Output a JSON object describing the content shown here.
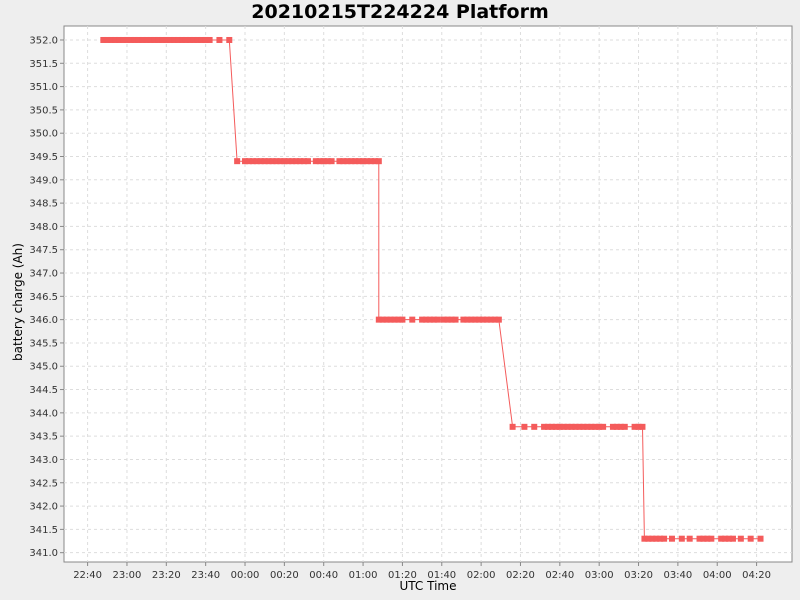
{
  "chart_data": {
    "type": "line",
    "title": "20210215T224224 Platform",
    "xlabel": "UTC Time",
    "ylabel": "battery charge (Ah)",
    "x_tick_labels": [
      "22:40",
      "23:00",
      "23:20",
      "23:40",
      "00:00",
      "00:20",
      "00:40",
      "01:00",
      "01:20",
      "01:40",
      "02:00",
      "02:20",
      "02:40",
      "03:00",
      "03:20",
      "03:40",
      "04:00",
      "04:20"
    ],
    "y_tick_labels": [
      "352.0",
      "351.5",
      "351.0",
      "350.5",
      "350.0",
      "349.5",
      "349.0",
      "348.5",
      "348.0",
      "347.5",
      "347.0",
      "346.5",
      "346.0",
      "345.5",
      "345.0",
      "344.5",
      "344.0",
      "343.5",
      "343.0",
      "342.5",
      "342.0",
      "341.5",
      "341.0"
    ],
    "x_unit": "minutes after 22:40 UTC",
    "xlim": [
      -12,
      358
    ],
    "ylim": [
      340.8,
      352.3
    ],
    "grid": true,
    "series": [
      {
        "color": "#f45b5b",
        "points": [
          [
            8,
            352.0
          ],
          [
            10,
            352.0
          ],
          [
            12,
            352.0
          ],
          [
            14,
            352.0
          ],
          [
            16,
            352.0
          ],
          [
            18,
            352.0
          ],
          [
            20,
            352.0
          ],
          [
            22,
            352.0
          ],
          [
            24,
            352.0
          ],
          [
            26,
            352.0
          ],
          [
            28,
            352.0
          ],
          [
            30,
            352.0
          ],
          [
            32,
            352.0
          ],
          [
            34,
            352.0
          ],
          [
            36,
            352.0
          ],
          [
            38,
            352.0
          ],
          [
            40,
            352.0
          ],
          [
            42,
            352.0
          ],
          [
            44,
            352.0
          ],
          [
            46,
            352.0
          ],
          [
            48,
            352.0
          ],
          [
            50,
            352.0
          ],
          [
            52,
            352.0
          ],
          [
            54,
            352.0
          ],
          [
            56,
            352.0
          ],
          [
            58,
            352.0
          ],
          [
            60,
            352.0
          ],
          [
            62,
            352.0
          ],
          [
            67,
            352.0
          ],
          [
            72,
            352.0
          ],
          [
            76,
            349.4
          ],
          [
            80,
            349.4
          ],
          [
            82,
            349.4
          ],
          [
            84,
            349.4
          ],
          [
            86,
            349.4
          ],
          [
            88,
            349.4
          ],
          [
            90,
            349.4
          ],
          [
            92,
            349.4
          ],
          [
            94,
            349.4
          ],
          [
            96,
            349.4
          ],
          [
            98,
            349.4
          ],
          [
            100,
            349.4
          ],
          [
            102,
            349.4
          ],
          [
            104,
            349.4
          ],
          [
            106,
            349.4
          ],
          [
            108,
            349.4
          ],
          [
            110,
            349.4
          ],
          [
            112,
            349.4
          ],
          [
            116,
            349.4
          ],
          [
            118,
            349.4
          ],
          [
            120,
            349.4
          ],
          [
            122,
            349.4
          ],
          [
            124,
            349.4
          ],
          [
            128,
            349.4
          ],
          [
            130,
            349.4
          ],
          [
            132,
            349.4
          ],
          [
            134,
            349.4
          ],
          [
            136,
            349.4
          ],
          [
            138,
            349.4
          ],
          [
            140,
            349.4
          ],
          [
            142,
            349.4
          ],
          [
            144,
            349.4
          ],
          [
            146,
            349.4
          ],
          [
            148,
            349.4
          ],
          [
            148,
            346.0
          ],
          [
            150,
            346.0
          ],
          [
            152,
            346.0
          ],
          [
            154,
            346.0
          ],
          [
            156,
            346.0
          ],
          [
            158,
            346.0
          ],
          [
            160,
            346.0
          ],
          [
            165,
            346.0
          ],
          [
            170,
            346.0
          ],
          [
            172,
            346.0
          ],
          [
            174,
            346.0
          ],
          [
            176,
            346.0
          ],
          [
            178,
            346.0
          ],
          [
            181,
            346.0
          ],
          [
            183,
            346.0
          ],
          [
            185,
            346.0
          ],
          [
            187,
            346.0
          ],
          [
            191,
            346.0
          ],
          [
            193,
            346.0
          ],
          [
            195,
            346.0
          ],
          [
            197,
            346.0
          ],
          [
            199,
            346.0
          ],
          [
            201,
            346.0
          ],
          [
            203,
            346.0
          ],
          [
            205,
            346.0
          ],
          [
            207,
            346.0
          ],
          [
            209,
            346.0
          ],
          [
            216,
            343.7
          ],
          [
            222,
            343.7
          ],
          [
            227,
            343.7
          ],
          [
            232,
            343.7
          ],
          [
            234,
            343.7
          ],
          [
            236,
            343.7
          ],
          [
            238,
            343.7
          ],
          [
            240,
            343.7
          ],
          [
            242,
            343.7
          ],
          [
            244,
            343.7
          ],
          [
            246,
            343.7
          ],
          [
            248,
            343.7
          ],
          [
            250,
            343.7
          ],
          [
            252,
            343.7
          ],
          [
            254,
            343.7
          ],
          [
            256,
            343.7
          ],
          [
            258,
            343.7
          ],
          [
            260,
            343.7
          ],
          [
            262,
            343.7
          ],
          [
            267,
            343.7
          ],
          [
            269,
            343.7
          ],
          [
            271,
            343.7
          ],
          [
            273,
            343.7
          ],
          [
            278,
            343.7
          ],
          [
            280,
            343.7
          ],
          [
            282,
            343.7
          ],
          [
            283,
            341.3
          ],
          [
            285,
            341.3
          ],
          [
            287,
            341.3
          ],
          [
            289,
            341.3
          ],
          [
            291,
            341.3
          ],
          [
            293,
            341.3
          ],
          [
            297,
            341.3
          ],
          [
            302,
            341.3
          ],
          [
            306,
            341.3
          ],
          [
            311,
            341.3
          ],
          [
            313,
            341.3
          ],
          [
            315,
            341.3
          ],
          [
            317,
            341.3
          ],
          [
            322,
            341.3
          ],
          [
            324,
            341.3
          ],
          [
            326,
            341.3
          ],
          [
            328,
            341.3
          ],
          [
            332,
            341.3
          ],
          [
            337,
            341.3
          ],
          [
            342,
            341.3
          ]
        ]
      }
    ]
  }
}
